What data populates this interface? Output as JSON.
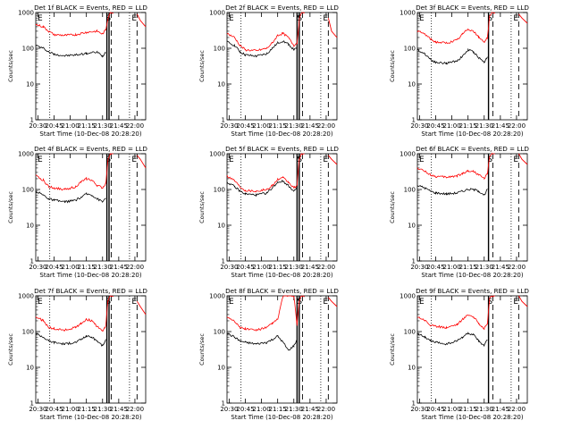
{
  "figure": {
    "xlabel": "Start Time (10-Dec-08 20:28:20)",
    "ylabel": "Counts/sec",
    "xticks": [
      "20:30",
      "20:45",
      "21:00",
      "21:15",
      "21:30",
      "21:45",
      "22:00"
    ],
    "yticks": [
      "1",
      "10",
      "100",
      "1000"
    ],
    "flags": [
      "E",
      "S",
      "E"
    ]
  },
  "colors": {
    "events": "#000000",
    "lld": "#ff0000",
    "axes": "#000000"
  },
  "chart_data": [
    {
      "type": "line",
      "title": "Det 1f BLACK = Events, RED = LLD",
      "xlabel": "Start Time (10-Dec-08 20:28:20)",
      "ylabel": "Counts/sec",
      "scale_y": "log",
      "xlim": [
        "20:28",
        "22:10"
      ],
      "ylim": [
        1,
        1000
      ],
      "grid": false,
      "time": [
        "20:28",
        "20:35",
        "20:40",
        "20:45",
        "20:55",
        "21:05",
        "21:15",
        "21:25",
        "21:30",
        "21:33",
        "21:35",
        "21:37",
        "21:40"
      ],
      "series": [
        {
          "name": "Events",
          "color": "#000000",
          "values": [
            120,
            100,
            80,
            68,
            62,
            65,
            72,
            78,
            60,
            80,
            null,
            null,
            null
          ]
        },
        {
          "name": "LLD",
          "color": "#ff0000",
          "values": [
            460,
            400,
            300,
            240,
            230,
            240,
            280,
            300,
            250,
            330,
            700,
            1000,
            1000
          ]
        }
      ],
      "late_lld": {
        "time": [
          "22:02",
          "22:05",
          "22:10"
        ],
        "values": [
          900,
          600,
          400
        ]
      },
      "solid_lines": [
        "21:34",
        "21:36"
      ],
      "dashed_lines": [
        "21:38",
        "22:02"
      ],
      "dotted_lines": [
        "20:41",
        "21:55"
      ]
    },
    {
      "type": "line",
      "title": "Det 2f BLACK = Events, RED = LLD",
      "xlabel": "Start Time (10-Dec-08 20:28:20)",
      "ylabel": "Counts/sec",
      "scale_y": "log",
      "xlim": [
        "20:28",
        "22:10"
      ],
      "ylim": [
        1,
        1000
      ],
      "grid": false,
      "time": [
        "20:28",
        "20:35",
        "20:40",
        "20:45",
        "20:55",
        "21:05",
        "21:10",
        "21:15",
        "21:20",
        "21:25",
        "21:30",
        "21:33",
        "21:35",
        "21:37",
        "21:40"
      ],
      "series": [
        {
          "name": "Events",
          "color": "#000000",
          "values": [
            150,
            120,
            80,
            65,
            60,
            70,
            100,
            140,
            160,
            130,
            90,
            100,
            null,
            null,
            null
          ]
        },
        {
          "name": "LLD",
          "color": "#ff0000",
          "values": [
            260,
            200,
            120,
            90,
            85,
            100,
            140,
            230,
            260,
            200,
            120,
            140,
            600,
            1000,
            1000
          ]
        }
      ],
      "late_lld": {
        "time": [
          "22:02",
          "22:05",
          "22:10"
        ],
        "values": [
          700,
          300,
          200
        ]
      },
      "solid_lines": [
        "21:33",
        "21:35"
      ],
      "dashed_lines": [
        "21:38",
        "22:02"
      ],
      "dotted_lines": [
        "20:41",
        "21:55"
      ]
    },
    {
      "type": "line",
      "title": "Det 3f BLACK = Events, RED = LLD",
      "xlabel": "Start Time (10-Dec-08 20:28:20)",
      "ylabel": "Counts/sec",
      "scale_y": "log",
      "xlim": [
        "20:28",
        "22:10"
      ],
      "ylim": [
        1,
        1000
      ],
      "grid": false,
      "time": [
        "20:28",
        "20:35",
        "20:40",
        "20:45",
        "20:55",
        "21:05",
        "21:10",
        "21:15",
        "21:20",
        "21:25",
        "21:30",
        "21:33",
        "21:35",
        "21:37",
        "21:40"
      ],
      "series": [
        {
          "name": "Events",
          "color": "#000000",
          "values": [
            90,
            70,
            50,
            40,
            38,
            45,
            60,
            90,
            80,
            55,
            40,
            60,
            null,
            null,
            null
          ]
        },
        {
          "name": "LLD",
          "color": "#ff0000",
          "values": [
            300,
            250,
            180,
            150,
            140,
            170,
            250,
            350,
            300,
            200,
            150,
            200,
            800,
            1000,
            1000
          ]
        }
      ],
      "late_lld": {
        "time": [
          "22:02",
          "22:05",
          "22:10"
        ],
        "values": [
          900,
          700,
          500
        ]
      },
      "solid_lines": [
        "21:34"
      ],
      "dashed_lines": [
        "21:38",
        "22:02"
      ],
      "dotted_lines": [
        "20:41",
        "21:55"
      ]
    },
    {
      "type": "line",
      "title": "Det 4f BLACK = Events, RED = LLD",
      "xlabel": "Start Time (10-Dec-08 20:28:20)",
      "ylabel": "Counts/sec",
      "scale_y": "log",
      "xlim": [
        "20:28",
        "22:10"
      ],
      "ylim": [
        1,
        1000
      ],
      "grid": false,
      "time": [
        "20:28",
        "20:35",
        "20:40",
        "20:45",
        "20:55",
        "21:05",
        "21:10",
        "21:15",
        "21:20",
        "21:25",
        "21:30",
        "21:33",
        "21:35",
        "21:37",
        "21:40"
      ],
      "series": [
        {
          "name": "Events",
          "color": "#000000",
          "values": [
            90,
            70,
            55,
            50,
            45,
            50,
            60,
            75,
            70,
            55,
            45,
            60,
            null,
            null,
            null
          ]
        },
        {
          "name": "LLD",
          "color": "#ff0000",
          "values": [
            240,
            180,
            120,
            110,
            100,
            120,
            160,
            200,
            180,
            130,
            110,
            150,
            700,
            1000,
            1000
          ]
        }
      ],
      "late_lld": {
        "time": [
          "22:02",
          "22:05",
          "22:10"
        ],
        "values": [
          900,
          700,
          400
        ]
      },
      "solid_lines": [
        "21:34",
        "21:36"
      ],
      "dashed_lines": [
        "21:38",
        "22:02"
      ],
      "dotted_lines": [
        "20:41",
        "21:55"
      ]
    },
    {
      "type": "line",
      "title": "Det 5f BLACK = Events, RED = LLD",
      "xlabel": "Start Time (10-Dec-08 20:28:20)",
      "ylabel": "Counts/sec",
      "scale_y": "log",
      "xlim": [
        "20:28",
        "22:10"
      ],
      "ylim": [
        1,
        1000
      ],
      "grid": false,
      "time": [
        "20:28",
        "20:35",
        "20:40",
        "20:45",
        "20:55",
        "21:05",
        "21:10",
        "21:15",
        "21:20",
        "21:25",
        "21:30",
        "21:33",
        "21:35",
        "21:37",
        "21:40"
      ],
      "series": [
        {
          "name": "Events",
          "color": "#000000",
          "values": [
            160,
            120,
            90,
            75,
            70,
            80,
            110,
            160,
            170,
            130,
            90,
            110,
            null,
            null,
            null
          ]
        },
        {
          "name": "LLD",
          "color": "#ff0000",
          "values": [
            240,
            180,
            120,
            95,
            90,
            100,
            130,
            190,
            210,
            160,
            110,
            130,
            700,
            1000,
            1000
          ]
        }
      ],
      "late_lld": {
        "time": [
          "22:02",
          "22:05",
          "22:10"
        ],
        "values": [
          900,
          700,
          500
        ]
      },
      "solid_lines": [
        "21:33",
        "21:35"
      ],
      "dashed_lines": [
        "21:38",
        "22:02"
      ],
      "dotted_lines": [
        "20:41",
        "21:55"
      ]
    },
    {
      "type": "line",
      "title": "Det 6f BLACK = Events, RED = LLD",
      "xlabel": "Start Time (10-Dec-08 20:28:20)",
      "ylabel": "Counts/sec",
      "scale_y": "log",
      "xlim": [
        "20:28",
        "22:10"
      ],
      "ylim": [
        1,
        1000
      ],
      "grid": false,
      "time": [
        "20:28",
        "20:35",
        "20:40",
        "20:45",
        "20:55",
        "21:05",
        "21:10",
        "21:15",
        "21:20",
        "21:25",
        "21:30",
        "21:33",
        "21:35",
        "21:37",
        "21:40"
      ],
      "series": [
        {
          "name": "Events",
          "color": "#000000",
          "values": [
            130,
            110,
            90,
            80,
            75,
            80,
            90,
            100,
            100,
            90,
            70,
            100,
            null,
            null,
            null
          ]
        },
        {
          "name": "LLD",
          "color": "#ff0000",
          "values": [
            400,
            320,
            260,
            230,
            220,
            240,
            280,
            330,
            320,
            260,
            200,
            280,
            800,
            1000,
            1000
          ]
        }
      ],
      "late_lld": {
        "time": [
          "22:02",
          "22:05",
          "22:10"
        ],
        "values": [
          1000,
          700,
          500
        ]
      },
      "solid_lines": [
        "21:34"
      ],
      "dashed_lines": [
        "21:38",
        "22:02"
      ],
      "dotted_lines": [
        "20:41",
        "21:55"
      ]
    },
    {
      "type": "line",
      "title": "Det 7f BLACK = Events, RED = LLD",
      "xlabel": "Start Time (10-Dec-08 20:28:20)",
      "ylabel": "Counts/sec",
      "scale_y": "log",
      "xlim": [
        "20:28",
        "22:10"
      ],
      "ylim": [
        1,
        1000
      ],
      "grid": false,
      "time": [
        "20:28",
        "20:35",
        "20:40",
        "20:45",
        "20:55",
        "21:05",
        "21:10",
        "21:15",
        "21:20",
        "21:25",
        "21:30",
        "21:33",
        "21:35",
        "21:37",
        "21:40"
      ],
      "series": [
        {
          "name": "Events",
          "color": "#000000",
          "values": [
            90,
            70,
            55,
            50,
            45,
            50,
            60,
            75,
            70,
            55,
            40,
            60,
            null,
            null,
            null
          ]
        },
        {
          "name": "LLD",
          "color": "#ff0000",
          "values": [
            260,
            200,
            130,
            120,
            110,
            130,
            170,
            220,
            200,
            140,
            100,
            150,
            700,
            1000,
            1000
          ]
        }
      ],
      "late_lld": {
        "time": [
          "22:02",
          "22:05",
          "22:10"
        ],
        "values": [
          700,
          500,
          300
        ]
      },
      "solid_lines": [
        "21:34",
        "21:36"
      ],
      "dashed_lines": [
        "21:38",
        "22:02"
      ],
      "dotted_lines": [
        "20:41",
        "21:55"
      ]
    },
    {
      "type": "line",
      "title": "Det 8f BLACK = Events, RED = LLD",
      "xlabel": "Start Time (10-Dec-08 20:28:20)",
      "ylabel": "Counts/sec",
      "scale_y": "log",
      "xlim": [
        "20:28",
        "22:10"
      ],
      "ylim": [
        1,
        1000
      ],
      "grid": false,
      "time": [
        "20:28",
        "20:35",
        "20:40",
        "20:45",
        "20:55",
        "21:05",
        "21:10",
        "21:15",
        "21:20",
        "21:25",
        "21:30",
        "21:33",
        "21:35",
        "21:37",
        "21:40"
      ],
      "series": [
        {
          "name": "Events",
          "color": "#000000",
          "values": [
            90,
            70,
            55,
            50,
            45,
            50,
            60,
            75,
            50,
            30,
            40,
            60,
            null,
            null,
            null
          ]
        },
        {
          "name": "LLD",
          "color": "#ff0000",
          "values": [
            260,
            200,
            130,
            120,
            110,
            130,
            170,
            220,
            1000,
            1000,
            1000,
            150,
            700,
            1000,
            1000
          ]
        }
      ],
      "late_lld": {
        "time": [
          "22:02",
          "22:05",
          "22:10"
        ],
        "values": [
          900,
          700,
          500
        ]
      },
      "solid_lines": [
        "21:33",
        "21:35"
      ],
      "dashed_lines": [
        "21:38",
        "22:02"
      ],
      "dotted_lines": [
        "20:41",
        "21:55"
      ]
    },
    {
      "type": "line",
      "title": "Det 9f BLACK = Events, RED = LLD",
      "xlabel": "Start Time (10-Dec-08 20:28:20)",
      "ylabel": "Counts/sec",
      "scale_y": "log",
      "xlim": [
        "20:28",
        "22:10"
      ],
      "ylim": [
        1,
        1000
      ],
      "grid": false,
      "time": [
        "20:28",
        "20:35",
        "20:40",
        "20:45",
        "20:55",
        "21:05",
        "21:10",
        "21:15",
        "21:20",
        "21:25",
        "21:30",
        "21:33",
        "21:35",
        "21:37",
        "21:40"
      ],
      "series": [
        {
          "name": "Events",
          "color": "#000000",
          "values": [
            90,
            70,
            55,
            50,
            45,
            55,
            70,
            90,
            80,
            55,
            40,
            60,
            null,
            null,
            null
          ]
        },
        {
          "name": "LLD",
          "color": "#ff0000",
          "values": [
            260,
            210,
            150,
            140,
            130,
            160,
            220,
            300,
            260,
            170,
            120,
            170,
            800,
            1000,
            1000
          ]
        }
      ],
      "late_lld": {
        "time": [
          "22:02",
          "22:05",
          "22:10"
        ],
        "values": [
          1000,
          700,
          500
        ]
      },
      "solid_lines": [
        "21:34"
      ],
      "dashed_lines": [
        "21:38",
        "22:02"
      ],
      "dotted_lines": [
        "20:41",
        "21:55"
      ]
    }
  ]
}
